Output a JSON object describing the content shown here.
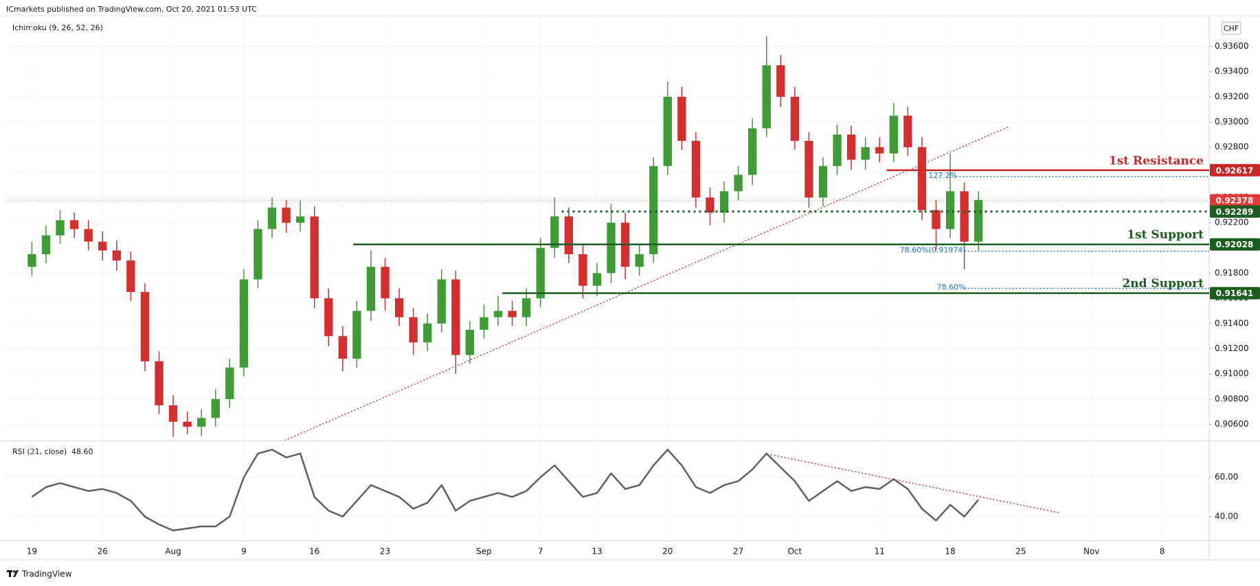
{
  "header": {
    "publisher": "ICmarkets published on TradingView.com, Oct 20, 2021 01:53 UTC",
    "brand": "TradingView"
  },
  "chart_data": {
    "type": "candlestick",
    "indicator_label": "Ichimoku (9, 26, 52, 26)",
    "currency": "CHF",
    "up_color": "#3f9b35",
    "down_color": "#d32f2f",
    "categories": [
      "Jul 19",
      "Jul 20",
      "Jul 21",
      "Jul 22",
      "Jul 23",
      "Jul 26",
      "Jul 27",
      "Jul 28",
      "Jul 29",
      "Jul 30",
      "Aug 2",
      "Aug 3",
      "Aug 4",
      "Aug 5",
      "Aug 6",
      "Aug 9",
      "Aug 10",
      "Aug 11",
      "Aug 12",
      "Aug 13",
      "Aug 16",
      "Aug 17",
      "Aug 18",
      "Aug 19",
      "Aug 20",
      "Aug 23",
      "Aug 24",
      "Aug 25",
      "Aug 26",
      "Aug 27",
      "Aug 30",
      "Aug 31",
      "Sep 1",
      "Sep 2",
      "Sep 3",
      "Sep 6",
      "Sep 7",
      "Sep 8",
      "Sep 9",
      "Sep 10",
      "Sep 13",
      "Sep 14",
      "Sep 15",
      "Sep 16",
      "Sep 17",
      "Sep 20",
      "Sep 21",
      "Sep 22",
      "Sep 23",
      "Sep 24",
      "Sep 27",
      "Sep 28",
      "Sep 29",
      "Sep 30",
      "Oct 1",
      "Oct 4",
      "Oct 5",
      "Oct 6",
      "Oct 7",
      "Oct 8",
      "Oct 11",
      "Oct 12",
      "Oct 13",
      "Oct 14",
      "Oct 15",
      "Oct 18",
      "Oct 19",
      "Oct 20"
    ],
    "open": [
      0.9185,
      0.9195,
      0.921,
      0.9222,
      0.9215,
      0.9205,
      0.9198,
      0.919,
      0.9165,
      0.911,
      0.9075,
      0.9062,
      0.9058,
      0.9065,
      0.908,
      0.9105,
      0.9175,
      0.9215,
      0.9232,
      0.922,
      0.9225,
      0.916,
      0.913,
      0.9112,
      0.915,
      0.9185,
      0.916,
      0.9145,
      0.9125,
      0.914,
      0.9175,
      0.9115,
      0.9135,
      0.9145,
      0.915,
      0.9145,
      0.916,
      0.92,
      0.9225,
      0.9195,
      0.917,
      0.918,
      0.922,
      0.9185,
      0.9195,
      0.9265,
      0.932,
      0.9285,
      0.924,
      0.9228,
      0.9245,
      0.9258,
      0.9295,
      0.9345,
      0.932,
      0.9285,
      0.924,
      0.9265,
      0.929,
      0.927,
      0.928,
      0.9275,
      0.9305,
      0.928,
      0.923,
      0.9215,
      0.9245,
      0.9205
    ],
    "high": [
      0.9205,
      0.9218,
      0.923,
      0.9228,
      0.9222,
      0.9213,
      0.9206,
      0.9197,
      0.9172,
      0.9118,
      0.9083,
      0.907,
      0.9072,
      0.9088,
      0.9112,
      0.9183,
      0.9222,
      0.924,
      0.9238,
      0.9238,
      0.9233,
      0.9168,
      0.9138,
      0.9158,
      0.9198,
      0.9192,
      0.9168,
      0.9152,
      0.9148,
      0.9183,
      0.9182,
      0.9142,
      0.9155,
      0.9162,
      0.9158,
      0.9168,
      0.9208,
      0.924,
      0.9232,
      0.9203,
      0.9188,
      0.9235,
      0.9228,
      0.9203,
      0.9272,
      0.9332,
      0.9328,
      0.9292,
      0.9248,
      0.9253,
      0.9265,
      0.9303,
      0.9368,
      0.9353,
      0.9328,
      0.9292,
      0.9272,
      0.9298,
      0.9297,
      0.9288,
      0.9288,
      0.9315,
      0.9312,
      0.9288,
      0.9238,
      0.9275,
      0.9252,
      0.9245
    ],
    "low": [
      0.9178,
      0.9188,
      0.9203,
      0.9208,
      0.9198,
      0.919,
      0.9182,
      0.9158,
      0.9102,
      0.9068,
      0.905,
      0.9052,
      0.9051,
      0.9058,
      0.9073,
      0.9098,
      0.9168,
      0.9208,
      0.9212,
      0.9213,
      0.9152,
      0.9122,
      0.9102,
      0.9105,
      0.9142,
      0.915,
      0.9138,
      0.9115,
      0.9118,
      0.9133,
      0.91,
      0.9108,
      0.9128,
      0.9138,
      0.9138,
      0.9138,
      0.9153,
      0.9192,
      0.9188,
      0.916,
      0.9162,
      0.9172,
      0.9175,
      0.9178,
      0.9188,
      0.9258,
      0.9278,
      0.9232,
      0.9218,
      0.922,
      0.9238,
      0.925,
      0.9288,
      0.9312,
      0.9278,
      0.9232,
      0.9233,
      0.9258,
      0.9262,
      0.9262,
      0.9268,
      0.9268,
      0.9273,
      0.9222,
      0.9198,
      0.9208,
      0.9183,
      0.9198
    ],
    "close": [
      0.9195,
      0.921,
      0.9222,
      0.9215,
      0.9205,
      0.9198,
      0.919,
      0.9165,
      0.911,
      0.9075,
      0.9062,
      0.9058,
      0.9065,
      0.908,
      0.9105,
      0.9175,
      0.9215,
      0.9232,
      0.922,
      0.9225,
      0.916,
      0.913,
      0.9112,
      0.915,
      0.9185,
      0.916,
      0.9145,
      0.9125,
      0.914,
      0.9175,
      0.9115,
      0.9135,
      0.9145,
      0.915,
      0.9145,
      0.916,
      0.92,
      0.9225,
      0.9195,
      0.917,
      0.918,
      0.922,
      0.9185,
      0.9195,
      0.9265,
      0.932,
      0.9285,
      0.924,
      0.9228,
      0.9245,
      0.9258,
      0.9295,
      0.9345,
      0.932,
      0.9285,
      0.924,
      0.9265,
      0.929,
      0.927,
      0.928,
      0.9275,
      0.9305,
      0.928,
      0.923,
      0.9215,
      0.9245,
      0.9205,
      0.9238
    ],
    "xlim": [
      -1.82,
      83.33
    ],
    "xticks": [
      {
        "value": 0,
        "label": "19"
      },
      {
        "value": 5,
        "label": "26"
      },
      {
        "value": 10,
        "label": "Aug"
      },
      {
        "value": 15,
        "label": "9"
      },
      {
        "value": 20,
        "label": "16"
      },
      {
        "value": 25,
        "label": "23"
      },
      {
        "value": 32,
        "label": "Sep"
      },
      {
        "value": 36,
        "label": "7"
      },
      {
        "value": 40,
        "label": "13"
      },
      {
        "value": 45,
        "label": "20"
      },
      {
        "value": 50,
        "label": "27"
      },
      {
        "value": 54,
        "label": "Oct"
      },
      {
        "value": 60,
        "label": "11"
      },
      {
        "value": 65,
        "label": "18"
      },
      {
        "value": 70,
        "label": "25"
      },
      {
        "value": 75,
        "label": "Nov"
      },
      {
        "value": 80,
        "label": "8"
      }
    ],
    "ylim": [
      0.90472,
      0.93843
    ],
    "yticks": [
      {
        "value": 0.906,
        "label": "0.90600"
      },
      {
        "value": 0.908,
        "label": "0.90800"
      },
      {
        "value": 0.91,
        "label": "0.91000"
      },
      {
        "value": 0.912,
        "label": "0.91200"
      },
      {
        "value": 0.914,
        "label": "0.91400"
      },
      {
        "value": 0.916,
        "label": "0.91600"
      },
      {
        "value": 0.918,
        "label": "0.91800"
      },
      {
        "value": 0.92,
        "label": "0.92000"
      },
      {
        "value": 0.922,
        "label": "0.92200"
      },
      {
        "value": 0.924,
        "label": "0.92400"
      },
      {
        "value": 0.926,
        "label": "0.92600"
      },
      {
        "value": 0.928,
        "label": "0.92800"
      },
      {
        "value": 0.93,
        "label": "0.93000"
      },
      {
        "value": 0.932,
        "label": "0.93200"
      },
      {
        "value": 0.934,
        "label": "0.93400"
      },
      {
        "value": 0.936,
        "label": "0.93600"
      }
    ],
    "grid": true,
    "levels": [
      {
        "value": 0.92617,
        "from": 60.5,
        "color": "#c62828",
        "style": "solid",
        "label": "1st Resistance"
      },
      {
        "value": 0.92378,
        "from": -1.82,
        "color": "#e53935",
        "style": "thin-dotted"
      },
      {
        "value": 0.92289,
        "from": 37.5,
        "color": "#1b5e20",
        "style": "dotted"
      },
      {
        "value": 0.92028,
        "from": 22.75,
        "color": "#1b5e20",
        "style": "solid",
        "label": "1st Support"
      },
      {
        "value": 0.91641,
        "from": 33.3,
        "color": "#1b5e20",
        "style": "solid",
        "label": "2nd Support"
      }
    ],
    "fibs": [
      {
        "value": 0.92566,
        "from": 65.4,
        "label": "127.2%"
      },
      {
        "value": 0.91974,
        "from": 66,
        "label": "78.60%(0.91974)"
      },
      {
        "value": 0.91679,
        "from": 66,
        "label": "78.60%"
      }
    ],
    "fib_color": "#1e73c8",
    "trendline": {
      "x": [
        17.9,
        69.1
      ],
      "y": [
        0.90472,
        0.9296
      ],
      "color": "#d32f2f"
    },
    "rsi": {
      "title": "RSI (21, close)",
      "last_label": "48.60",
      "color": "#5d606b",
      "values": [
        50,
        55,
        57,
        55,
        53,
        54,
        52,
        48,
        40,
        36,
        33,
        34,
        35,
        35,
        40,
        60,
        72,
        74,
        70,
        72,
        50,
        43,
        40,
        48,
        56,
        53,
        50,
        44,
        47,
        56,
        43,
        48,
        50,
        52,
        50,
        53,
        60,
        66,
        58,
        50,
        52,
        62,
        54,
        56,
        66,
        74,
        66,
        55,
        52,
        56,
        58,
        64,
        72,
        65,
        58,
        48,
        53,
        58,
        53,
        55,
        54,
        59,
        54,
        44,
        38,
        46,
        40,
        48.6
      ],
      "ylim": [
        27.8,
        78.0
      ],
      "yticks": [
        {
          "value": 60,
          "label": "60.00"
        },
        {
          "value": 40,
          "label": "40.00"
        }
      ],
      "trendline": {
        "x": [
          52.3,
          72.7
        ],
        "y": [
          71.4,
          42.0
        ],
        "color": "#d32f2f"
      }
    }
  }
}
